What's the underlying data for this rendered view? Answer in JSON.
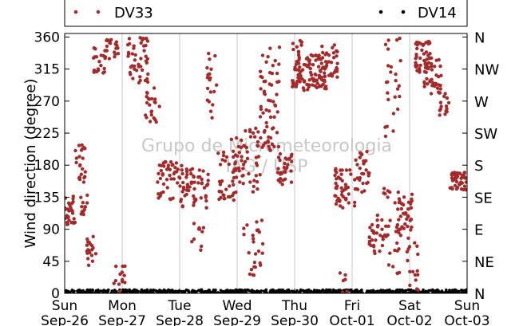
{
  "chart_data": {
    "type": "scatter",
    "ylabel": "Wind direction (degree)",
    "ylim": [
      0,
      365
    ],
    "xlim": [
      0,
      7
    ],
    "y_ticks": [
      0,
      45,
      90,
      135,
      180,
      225,
      270,
      315,
      360
    ],
    "y2_ticks": [
      {
        "value": 0,
        "label": "N"
      },
      {
        "value": 45,
        "label": "NE"
      },
      {
        "value": 90,
        "label": "E"
      },
      {
        "value": 135,
        "label": "SE"
      },
      {
        "value": 180,
        "label": "S"
      },
      {
        "value": 225,
        "label": "SW"
      },
      {
        "value": 270,
        "label": "W"
      },
      {
        "value": 315,
        "label": "NW"
      },
      {
        "value": 360,
        "label": "N"
      }
    ],
    "x_ticks": [
      {
        "value": 0,
        "line1": "Sun",
        "line2": "Sep-26"
      },
      {
        "value": 1,
        "line1": "Mon",
        "line2": "Sep-27"
      },
      {
        "value": 2,
        "line1": "Tue",
        "line2": "Sep-28"
      },
      {
        "value": 3,
        "line1": "Wed",
        "line2": "Sep-29"
      },
      {
        "value": 4,
        "line1": "Thu",
        "line2": "Sep-30"
      },
      {
        "value": 5,
        "line1": "Fri",
        "line2": "Oct-01"
      },
      {
        "value": 6,
        "line1": "Sat",
        "line2": "Oct-02"
      },
      {
        "value": 7,
        "line1": "Sun",
        "line2": "Oct-03"
      }
    ],
    "grid": "vertical",
    "legend_position": "top",
    "watermark": [
      "Grupo de Micrometeorologia",
      "IAG / USP"
    ],
    "series": [
      {
        "name": "DV33",
        "color": "#a52a2a",
        "clusters": [
          {
            "x": [
              0.0,
              0.18
            ],
            "y": [
              95,
              140
            ],
            "n": 30
          },
          {
            "x": [
              0.18,
              0.36
            ],
            "y": [
              150,
              210
            ],
            "n": 22
          },
          {
            "x": [
              0.28,
              0.4
            ],
            "y": [
              110,
              150
            ],
            "n": 12
          },
          {
            "x": [
              0.38,
              0.55
            ],
            "y": [
              35,
              80
            ],
            "n": 20
          },
          {
            "x": [
              0.5,
              0.7
            ],
            "y": [
              305,
              350
            ],
            "n": 18
          },
          {
            "x": [
              0.7,
              0.95
            ],
            "y": [
              320,
              360
            ],
            "n": 25
          },
          {
            "x": [
              0.85,
              1.05
            ],
            "y": [
              0,
              40
            ],
            "n": 14
          },
          {
            "x": [
              1.1,
              1.45
            ],
            "y": [
              295,
              360
            ],
            "n": 45
          },
          {
            "x": [
              1.4,
              1.65
            ],
            "y": [
              240,
              290
            ],
            "n": 22
          },
          {
            "x": [
              1.6,
              2.05
            ],
            "y": [
              130,
              185
            ],
            "n": 45
          },
          {
            "x": [
              2.0,
              2.5
            ],
            "y": [
              120,
              175
            ],
            "n": 55
          },
          {
            "x": [
              2.2,
              2.45
            ],
            "y": [
              60,
              110
            ],
            "n": 10
          },
          {
            "x": [
              2.45,
              2.65
            ],
            "y": [
              240,
              340
            ],
            "n": 20
          },
          {
            "x": [
              2.65,
              3.0
            ],
            "y": [
              130,
              200
            ],
            "n": 40
          },
          {
            "x": [
              2.9,
              3.4
            ],
            "y": [
              140,
              235
            ],
            "n": 50
          },
          {
            "x": [
              3.1,
              3.45
            ],
            "y": [
              20,
              110
            ],
            "n": 25
          },
          {
            "x": [
              3.4,
              3.75
            ],
            "y": [
              200,
              350
            ],
            "n": 60
          },
          {
            "x": [
              3.7,
              3.95
            ],
            "y": [
              150,
              200
            ],
            "n": 30
          },
          {
            "x": [
              3.95,
              4.15
            ],
            "y": [
              290,
              355
            ],
            "n": 40
          },
          {
            "x": [
              4.15,
              4.55
            ],
            "y": [
              285,
              335
            ],
            "n": 70
          },
          {
            "x": [
              4.45,
              4.75
            ],
            "y": [
              300,
              350
            ],
            "n": 35
          },
          {
            "x": [
              4.75,
              5.05
            ],
            "y": [
              0,
              30
            ],
            "n": 6
          },
          {
            "x": [
              4.7,
              5.05
            ],
            "y": [
              120,
              175
            ],
            "n": 45
          },
          {
            "x": [
              5.05,
              5.3
            ],
            "y": [
              140,
              200
            ],
            "n": 30
          },
          {
            "x": [
              5.3,
              5.55
            ],
            "y": [
              55,
              110
            ],
            "n": 30
          },
          {
            "x": [
              5.5,
              5.85
            ],
            "y": [
              20,
              150
            ],
            "n": 30
          },
          {
            "x": [
              5.55,
              5.85
            ],
            "y": [
              220,
              360
            ],
            "n": 25
          },
          {
            "x": [
              5.75,
              6.05
            ],
            "y": [
              80,
              140
            ],
            "n": 35
          },
          {
            "x": [
              5.95,
              6.15
            ],
            "y": [
              0,
              90
            ],
            "n": 18
          },
          {
            "x": [
              6.1,
              6.4
            ],
            "y": [
              310,
              355
            ],
            "n": 45
          },
          {
            "x": [
              6.25,
              6.55
            ],
            "y": [
              280,
              330
            ],
            "n": 35
          },
          {
            "x": [
              6.5,
              6.7
            ],
            "y": [
              250,
              285
            ],
            "n": 15
          },
          {
            "x": [
              6.7,
              7.0
            ],
            "y": [
              145,
              170
            ],
            "n": 45
          }
        ]
      },
      {
        "name": "DV14",
        "color": "#000000",
        "clusters": [
          {
            "x": [
              0.0,
              7.0
            ],
            "y": [
              0,
              5
            ],
            "n": 700
          }
        ]
      }
    ]
  }
}
